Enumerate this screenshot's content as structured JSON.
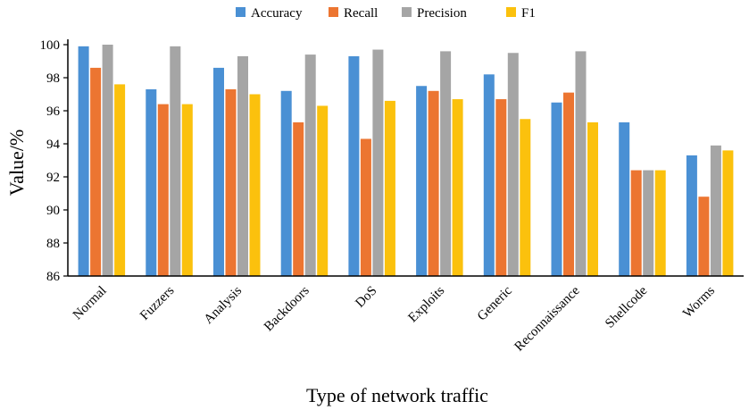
{
  "chart_data": {
    "type": "bar",
    "title": "",
    "xlabel": "Type of network traffic",
    "ylabel": "Value/%",
    "ylim": [
      86,
      100
    ],
    "yticks": [
      86,
      88,
      90,
      92,
      94,
      96,
      98,
      100
    ],
    "grid": false,
    "legend_position": "top-center",
    "categories": [
      "Normal",
      "Fuzzers",
      "Analysis",
      "Backdoors",
      "DoS",
      "Exploits",
      "Generic",
      "Reconnaissance",
      "Shellcode",
      "Worms"
    ],
    "series": [
      {
        "name": "Accuracy",
        "color": "#4a90d4",
        "values": [
          99.9,
          97.3,
          98.6,
          97.2,
          99.3,
          97.5,
          98.2,
          96.5,
          95.3,
          93.3
        ]
      },
      {
        "name": "Recall",
        "color": "#ec7531",
        "values": [
          98.6,
          96.4,
          97.3,
          95.3,
          94.3,
          97.2,
          96.7,
          97.1,
          92.4,
          90.8
        ]
      },
      {
        "name": "Precision",
        "color": "#a5a5a5",
        "values": [
          100.0,
          99.9,
          99.3,
          99.4,
          99.7,
          99.6,
          99.5,
          99.6,
          92.4,
          93.9
        ]
      },
      {
        "name": "F1",
        "color": "#fbc10d",
        "values": [
          97.6,
          96.4,
          97.0,
          96.3,
          96.6,
          96.7,
          95.5,
          95.3,
          92.4,
          93.6
        ]
      }
    ]
  }
}
